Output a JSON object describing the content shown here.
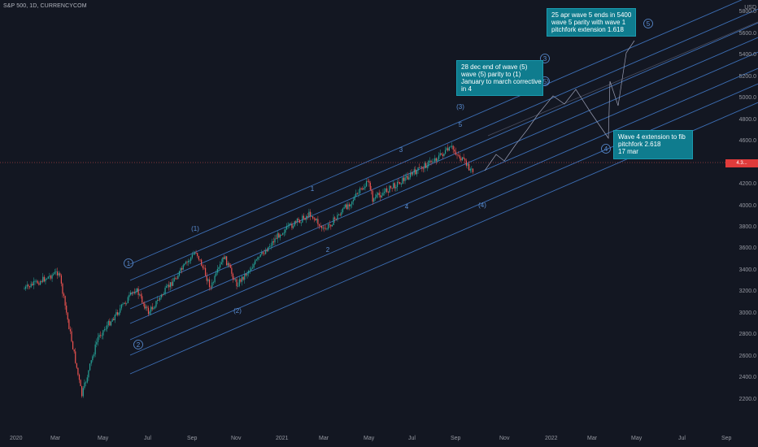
{
  "header": {
    "title": "S&P 500, 1D, CURRENCYCOM"
  },
  "annotations": {
    "a1": "28 dec end of wave (5)\nwave (5) parity to (1)\nJanuary to march corrective\nin 4",
    "a2": "25 apr wave 5 ends in 5400\nwave 5 parity with wave 1\npitchfork extension 1.618",
    "a3": "Wave 4 extension to fib\npitchfork 2.618\n17 mar"
  },
  "wave_labels": [
    "1",
    "(1)",
    "(2)",
    "2",
    "1",
    "3",
    "4",
    "5",
    "(3)",
    "(4)",
    "(5)",
    "3",
    "4",
    "5"
  ],
  "y_axis": {
    "unit": "USD",
    "ticks": [
      "5800.0",
      "5600.0",
      "5400.0",
      "5200.0",
      "5000.0",
      "4800.0",
      "4600.0",
      "4200.0",
      "4000.0",
      "3800.0",
      "3600.0",
      "3400.0",
      "3200.0",
      "3000.0",
      "2800.0",
      "2600.0",
      "2400.0",
      "2200.0"
    ]
  },
  "x_axis": {
    "ticks": [
      "2020",
      "Mar",
      "May",
      "Jul",
      "Sep",
      "Nov",
      "2021",
      "Mar",
      "May",
      "Jul",
      "Sep",
      "Nov",
      "2022",
      "Mar",
      "May",
      "Jul",
      "Sep"
    ]
  },
  "colors": {
    "bg": "#131722",
    "up": "#26a69a",
    "down": "#ef5350",
    "channel": "#3d6fb6",
    "annotation": "#0f7c8e"
  },
  "chart_data": {
    "type": "candlestick",
    "title": "S&P 500, 1D, CURRENCYCOM",
    "y_unit": "USD",
    "ylim": [
      2100,
      5900
    ],
    "x_range": [
      "2020-01",
      "2022-10"
    ],
    "close_path": [
      {
        "x": "2020-01-01",
        "y": 3230
      },
      {
        "x": "2020-02-19",
        "y": 3390
      },
      {
        "x": "2020-03-23",
        "y": 2240
      },
      {
        "x": "2020-04-15",
        "y": 2780
      },
      {
        "x": "2020-06-08",
        "y": 3230
      },
      {
        "x": "2020-06-26",
        "y": 3010
      },
      {
        "x": "2020-09-02",
        "y": 3580
      },
      {
        "x": "2020-09-23",
        "y": 3240
      },
      {
        "x": "2020-10-12",
        "y": 3530
      },
      {
        "x": "2020-10-30",
        "y": 3270
      },
      {
        "x": "2020-12-31",
        "y": 3750
      },
      {
        "x": "2021-02-12",
        "y": 3930
      },
      {
        "x": "2021-03-04",
        "y": 3770
      },
      {
        "x": "2021-05-07",
        "y": 4230
      },
      {
        "x": "2021-05-12",
        "y": 4060
      },
      {
        "x": "2021-09-02",
        "y": 4540
      },
      {
        "x": "2021-10-04",
        "y": 4300
      }
    ],
    "projection": [
      {
        "x": "2021-10-04",
        "y": 4300
      },
      {
        "x": "2021-12-28",
        "y": 4930
      },
      {
        "x": "2022-03-17",
        "y": 4400
      },
      {
        "x": "2022-04-25",
        "y": 5400
      }
    ],
    "current_price_label": "4.3..."
  }
}
